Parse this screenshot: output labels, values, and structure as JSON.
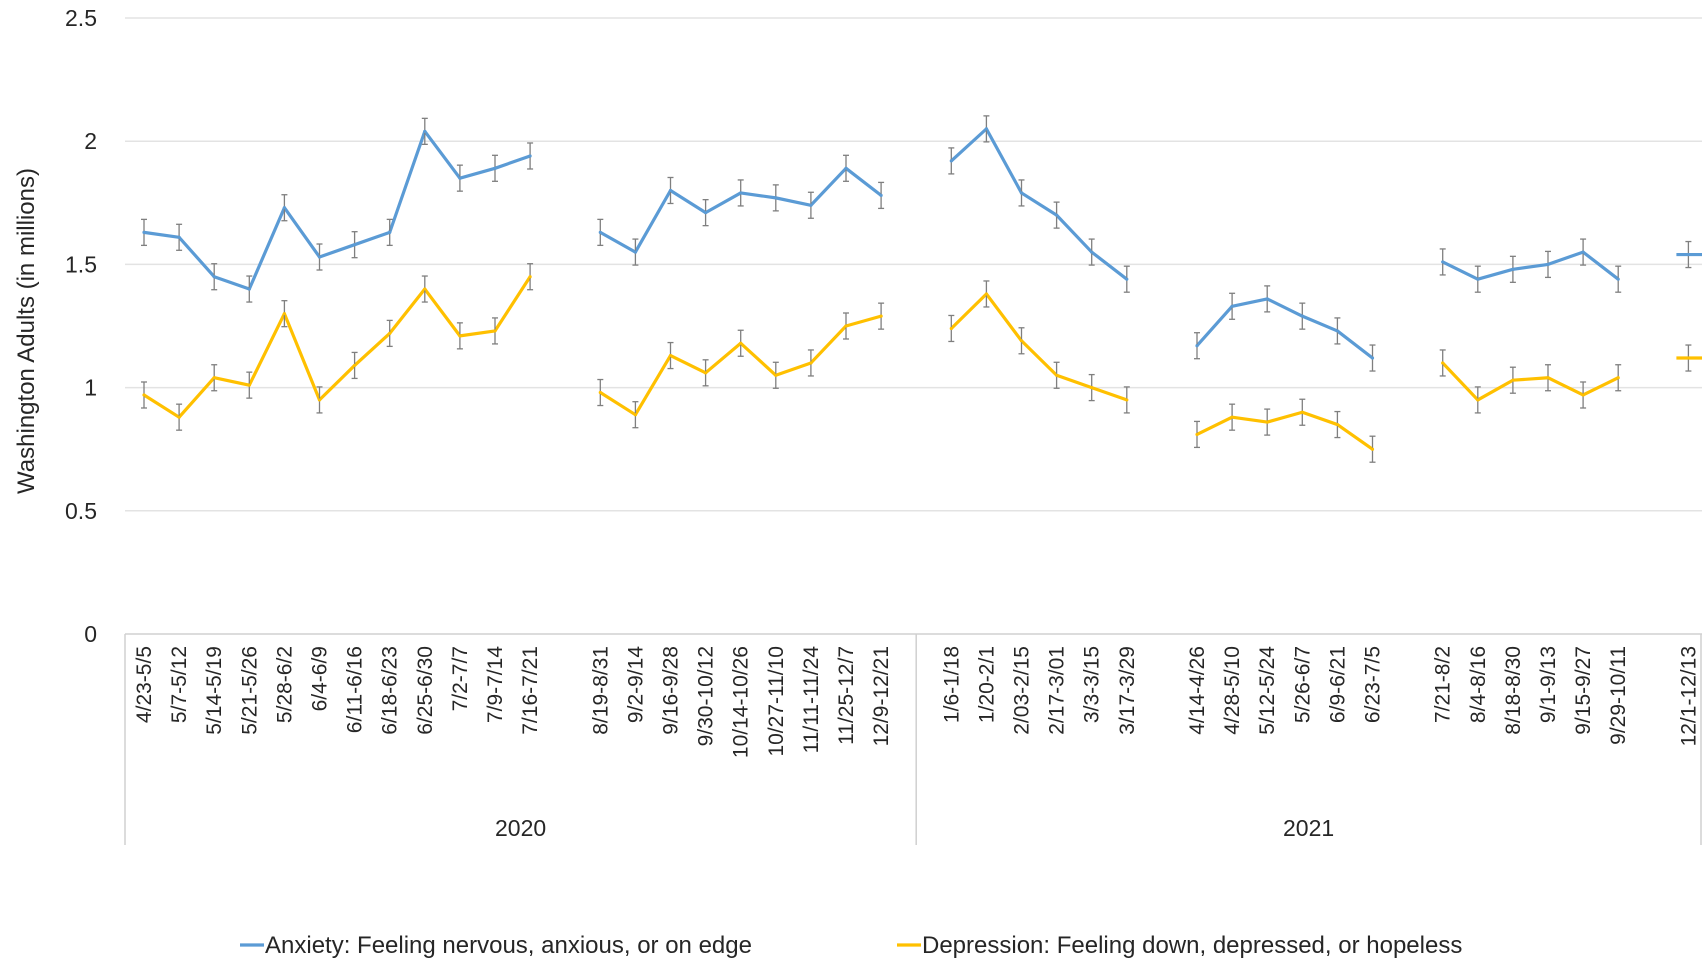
{
  "chart_data": {
    "type": "line",
    "ylabel": "Washington Adults (in millions)",
    "ylim": [
      0,
      2.5
    ],
    "yticks": [
      "0",
      "0.5",
      "1",
      "1.5",
      "2",
      "2.5"
    ],
    "grid": true,
    "legend_position": "bottom",
    "error_bars": true,
    "groups": [
      {
        "label": "2020",
        "segments": [
          [
            "4/23-5/5",
            "5/7-5/12",
            "5/14-5/19",
            "5/21-5/26",
            "5/28-6/2",
            "6/4-6/9",
            "6/11-6/16",
            "6/18-6/23",
            "6/25-6/30",
            "7/2-7/7",
            "7/9-7/14",
            "7/16-7/21"
          ],
          [
            "8/19-8/31",
            "9/2-9/14",
            "9/16-9/28",
            "9/30-10/12",
            "10/14-10/26",
            "10/27-11/10",
            "11/11-11/24",
            "11/25-12/7",
            "12/9-12/21"
          ]
        ]
      },
      {
        "label": "2021",
        "segments": [
          [
            "1/6-1/18",
            "1/20-2/1",
            "2/03-2/15",
            "2/17-3/01",
            "3/3-3/15",
            "3/17-3/29"
          ],
          [
            "4/14-4/26",
            "4/28-5/10",
            "5/12-5/24",
            "5/26-6/7",
            "6/9-6/21",
            "6/23-7/5"
          ],
          [
            "7/21-8/2",
            "8/4-8/16",
            "8/18-8/30",
            "9/1-9/13",
            "9/15-9/27",
            "9/29-10/11"
          ],
          [
            "12/1-12/13"
          ]
        ]
      }
    ],
    "series": [
      {
        "name": "Anxiety: Feeling nervous, anxious, or on edge",
        "color": "#5b9bd5",
        "segments": [
          [
            1.63,
            1.61,
            1.45,
            1.4,
            1.73,
            1.53,
            1.58,
            1.63,
            2.04,
            1.85,
            1.89,
            1.94
          ],
          [
            1.63,
            1.55,
            1.8,
            1.71,
            1.79,
            1.77,
            1.74,
            1.89,
            1.78
          ],
          [
            1.92,
            2.05,
            1.79,
            1.7,
            1.55,
            1.44
          ],
          [
            1.17,
            1.33,
            1.36,
            1.29,
            1.23,
            1.12
          ],
          [
            1.51,
            1.44,
            1.48,
            1.5,
            1.55,
            1.44
          ],
          [
            1.54
          ]
        ]
      },
      {
        "name": "Depression: Feeling down, depressed, or hopeless",
        "color": "#ffc000",
        "segments": [
          [
            0.97,
            0.88,
            1.04,
            1.01,
            1.3,
            0.95,
            1.09,
            1.22,
            1.4,
            1.21,
            1.23,
            1.45
          ],
          [
            0.98,
            0.89,
            1.13,
            1.06,
            1.18,
            1.05,
            1.1,
            1.25,
            1.29
          ],
          [
            1.24,
            1.38,
            1.19,
            1.05,
            1.0,
            0.95
          ],
          [
            0.81,
            0.88,
            0.86,
            0.9,
            0.85,
            0.75
          ],
          [
            1.1,
            0.95,
            1.03,
            1.04,
            0.97,
            1.04
          ],
          [
            1.12
          ]
        ]
      }
    ]
  }
}
